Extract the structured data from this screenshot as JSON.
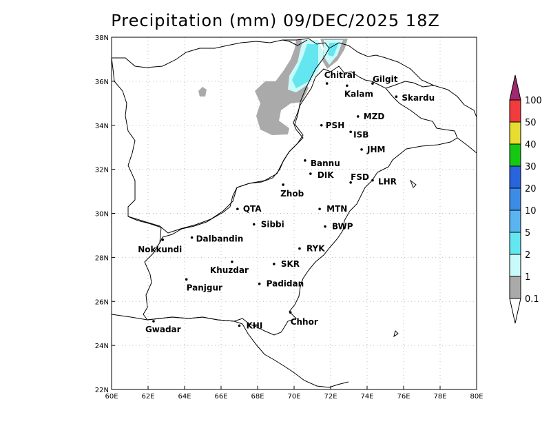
{
  "title": "Precipitation (mm) 09/DEC/2025 18Z",
  "map": {
    "lon_range": [
      60,
      80
    ],
    "lat_range": [
      22,
      38
    ],
    "grid": "dotted",
    "x_ticks": [
      "60E",
      "62E",
      "64E",
      "66E",
      "68E",
      "70E",
      "72E",
      "74E",
      "76E",
      "78E",
      "80E"
    ],
    "y_ticks": [
      "22N",
      "24N",
      "26N",
      "28N",
      "30N",
      "32N",
      "34N",
      "36N",
      "38N"
    ],
    "cities": [
      {
        "name": "Chitral",
        "lon": 71.8,
        "lat": 35.9
      },
      {
        "name": "Kalam",
        "lon": 72.9,
        "lat": 35.8
      },
      {
        "name": "Gilgit",
        "lon": 74.3,
        "lat": 35.9
      },
      {
        "name": "Skardu",
        "lon": 75.6,
        "lat": 35.3
      },
      {
        "name": "MZD",
        "lon": 73.5,
        "lat": 34.4
      },
      {
        "name": "PSH",
        "lon": 71.5,
        "lat": 34.0
      },
      {
        "name": "ISB",
        "lon": 73.1,
        "lat": 33.7
      },
      {
        "name": "JHM",
        "lon": 73.7,
        "lat": 32.9
      },
      {
        "name": "Bannu",
        "lon": 70.6,
        "lat": 32.4
      },
      {
        "name": "DIK",
        "lon": 70.9,
        "lat": 31.8
      },
      {
        "name": "FSD",
        "lon": 73.1,
        "lat": 31.4
      },
      {
        "name": "LHR",
        "lon": 74.3,
        "lat": 31.5
      },
      {
        "name": "Zhob",
        "lon": 69.4,
        "lat": 31.3
      },
      {
        "name": "QTA",
        "lon": 66.9,
        "lat": 30.2
      },
      {
        "name": "MTN",
        "lon": 71.4,
        "lat": 30.2
      },
      {
        "name": "Sibbi",
        "lon": 67.8,
        "lat": 29.5
      },
      {
        "name": "BWP",
        "lon": 71.7,
        "lat": 29.4
      },
      {
        "name": "Nokkundi",
        "lon": 62.8,
        "lat": 28.8
      },
      {
        "name": "Dalbandin",
        "lon": 64.4,
        "lat": 28.9
      },
      {
        "name": "RYK",
        "lon": 70.3,
        "lat": 28.4
      },
      {
        "name": "Khuzdar",
        "lon": 66.6,
        "lat": 27.8
      },
      {
        "name": "SKR",
        "lon": 68.9,
        "lat": 27.7
      },
      {
        "name": "Panjgur",
        "lon": 64.1,
        "lat": 27.0
      },
      {
        "name": "Padidan",
        "lon": 68.1,
        "lat": 26.8
      },
      {
        "name": "Chhor",
        "lon": 69.8,
        "lat": 25.5
      },
      {
        "name": "Gwadar",
        "lon": 62.3,
        "lat": 25.1
      },
      {
        "name": "KHI",
        "lon": 67.0,
        "lat": 24.9
      }
    ]
  },
  "legend": {
    "labels": [
      "0.1",
      "1",
      "2",
      "5",
      "10",
      "20",
      "30",
      "40",
      "50",
      "100"
    ],
    "colors": [
      "#aaaaaa",
      "#c8fafa",
      "#64e6f0",
      "#5ab4f0",
      "#3c8ce6",
      "#2864dc",
      "#14c814",
      "#e6dc32",
      "#f03c3c",
      "#a0286e"
    ]
  }
}
